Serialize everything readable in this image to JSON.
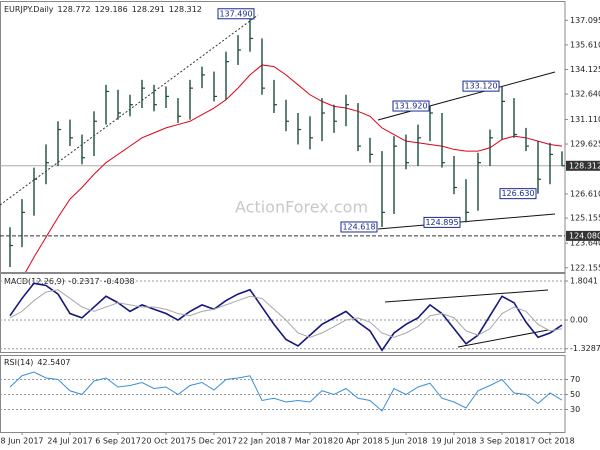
{
  "chart_data": [
    {
      "type": "ohlc",
      "title": "EURJPY.Daily",
      "header_values": [
        128.772,
        129.186,
        128.291,
        128.312
      ],
      "color": "#1d4b3c",
      "high": [
        124.6,
        126.3,
        128.2,
        129.6,
        131.0,
        131.1,
        130.2,
        131.6,
        133.2,
        132.9,
        132.6,
        133.5,
        133.2,
        133.1,
        132.4,
        133.5,
        134.3,
        134.0,
        135.2,
        136.2,
        137.49,
        136.0,
        133.5,
        132.3,
        131.5,
        131.3,
        132.4,
        132.0,
        132.6,
        132.1,
        130.0,
        129.2,
        130.1,
        130.2,
        130.8,
        131.92,
        131.5,
        128.9,
        127.5,
        129.1,
        130.5,
        133.12,
        132.4,
        130.6,
        129.8,
        129.7,
        129.186
      ],
      "low": [
        122.2,
        123.4,
        125.3,
        127.2,
        128.3,
        129.5,
        128.4,
        128.9,
        130.8,
        131.1,
        131.3,
        131.8,
        131.6,
        131.8,
        130.9,
        131.1,
        133.0,
        132.2,
        132.3,
        134.4,
        135.2,
        132.6,
        131.5,
        130.4,
        129.6,
        129.3,
        129.8,
        130.3,
        130.7,
        129.2,
        128.5,
        124.618,
        125.4,
        128.1,
        128.3,
        129.8,
        128.2,
        126.6,
        124.895,
        125.6,
        128.3,
        129.9,
        130.0,
        129.2,
        126.63,
        127.2,
        128.291
      ],
      "close": [
        123.5,
        125.5,
        127.5,
        128.5,
        130.5,
        130.0,
        128.8,
        131.0,
        132.8,
        131.5,
        132.0,
        133.0,
        132.0,
        132.5,
        131.3,
        133.0,
        133.8,
        132.5,
        134.6,
        135.3,
        136.0,
        133.0,
        132.0,
        131.0,
        130.5,
        130.0,
        131.5,
        131.0,
        132.0,
        129.5,
        129.0,
        125.5,
        129.5,
        128.5,
        130.0,
        131.5,
        128.5,
        127.0,
        125.5,
        128.5,
        130.0,
        132.2,
        130.2,
        129.5,
        127.5,
        129.0,
        128.312
      ],
      "series": [
        {
          "color": "#e0001b",
          "values": [
            null,
            121.5,
            122.8,
            124.0,
            125.2,
            126.3,
            127.0,
            127.8,
            128.5,
            129.0,
            129.5,
            130.0,
            130.3,
            130.6,
            130.8,
            131.0,
            131.4,
            131.8,
            132.3,
            133.0,
            133.8,
            134.4,
            134.3,
            133.8,
            133.2,
            132.6,
            132.2,
            131.9,
            131.8,
            131.6,
            131.3,
            130.6,
            130.2,
            129.8,
            129.7,
            129.6,
            129.5,
            129.3,
            129.2,
            129.2,
            129.4,
            129.9,
            130.1,
            130.0,
            129.8,
            129.6,
            129.5
          ]
        }
      ],
      "ylim": [
        121.9,
        138.2
      ],
      "yticks": [
        137.095,
        {
          "value": 135.61,
          "label": "135.610"
        },
        134.125,
        {
          "value": 132.64,
          "label": "132.640"
        },
        {
          "value": 131.11,
          "label": "131.110"
        },
        129.625,
        {
          "value": 126.61,
          "label": "126.610"
        },
        125.155,
        {
          "value": 123.64,
          "label": "123.640"
        },
        122.155
      ],
      "levels": [
        {
          "value": 124.08,
          "label": "124.080"
        }
      ],
      "annotations": [
        {
          "value": 137.49,
          "label": "137.490"
        },
        {
          "value": 131.92,
          "label": "131.920"
        },
        {
          "value": 133.12,
          "label": "133.120"
        },
        {
          "value": 124.618,
          "label": "124.618"
        },
        {
          "value": 124.895,
          "label": "124.895"
        },
        {
          "value": 126.63,
          "label": "126.630"
        }
      ],
      "watermark": "ActionForex.com"
    },
    {
      "type": "line",
      "title": "MACD(12,26,9)",
      "header_values": [
        -0.2317,
        -0.4038
      ],
      "series": [
        {
          "color": "#17177f",
          "values": [
            0.2,
            1.0,
            1.7,
            1.6,
            1.2,
            0.3,
            0.1,
            0.6,
            1.1,
            0.8,
            0.4,
            0.7,
            0.5,
            0.3,
            0.0,
            0.4,
            0.7,
            0.5,
            0.9,
            1.2,
            1.4,
            0.6,
            -0.2,
            -0.9,
            -1.2,
            -0.7,
            -0.2,
            0.1,
            0.4,
            -0.1,
            -0.5,
            -1.4,
            -0.6,
            -0.2,
            0.1,
            0.7,
            0.3,
            -0.4,
            -1.1,
            -0.7,
            0.2,
            1.1,
            0.8,
            -0.1,
            -0.8,
            -0.6,
            -0.2317
          ]
        },
        {
          "color": "#a8a8a8",
          "values": [
            0.1,
            0.4,
            0.9,
            1.3,
            1.4,
            1.0,
            0.6,
            0.4,
            0.6,
            0.8,
            0.7,
            0.6,
            0.6,
            0.5,
            0.3,
            0.2,
            0.4,
            0.5,
            0.7,
            0.9,
            1.1,
            1.0,
            0.5,
            0.0,
            -0.6,
            -0.8,
            -0.6,
            -0.3,
            0.0,
            0.1,
            -0.1,
            -0.6,
            -0.8,
            -0.6,
            -0.3,
            0.2,
            0.3,
            0.1,
            -0.5,
            -0.7,
            -0.4,
            0.3,
            0.6,
            0.4,
            -0.2,
            -0.5,
            -0.4038
          ]
        }
      ],
      "ylim": [
        -1.48,
        2.13
      ],
      "yticks": [
        1.8041,
        {
          "value": 0,
          "label": "0.00"
        },
        -1.3287
      ]
    },
    {
      "type": "line",
      "title": "RSI(14)",
      "header_values": [
        42.5407
      ],
      "series": [
        {
          "color": "#3a8fd8",
          "values": [
            60,
            75,
            80,
            72,
            70,
            55,
            50,
            68,
            72,
            60,
            62,
            66,
            58,
            60,
            50,
            62,
            66,
            56,
            70,
            72,
            75,
            42,
            45,
            40,
            42,
            40,
            55,
            50,
            58,
            45,
            42,
            28,
            58,
            50,
            60,
            65,
            45,
            40,
            32,
            55,
            62,
            70,
            52,
            50,
            38,
            52,
            42.5407
          ]
        }
      ],
      "ylim": [
        0,
        100
      ],
      "yticks": [
        70,
        50,
        30
      ],
      "categories": [
        null,
        "8 Jun 2017",
        null,
        null,
        null,
        "24 Jul 2017",
        null,
        null,
        null,
        "6 Sep 2017",
        null,
        null,
        null,
        "20 Oct 2017",
        null,
        null,
        null,
        "5 Dec 2017",
        null,
        null,
        null,
        "22 Jan 2018",
        null,
        null,
        null,
        "7 Mar 2018",
        null,
        null,
        null,
        "20 Apr 2018",
        null,
        null,
        null,
        "5 Jun 2018",
        null,
        null,
        null,
        "19 Jul 2018",
        null,
        null,
        null,
        "3 Sep 2018",
        null,
        null,
        null,
        "17 Oct 2018",
        null
      ]
    }
  ]
}
